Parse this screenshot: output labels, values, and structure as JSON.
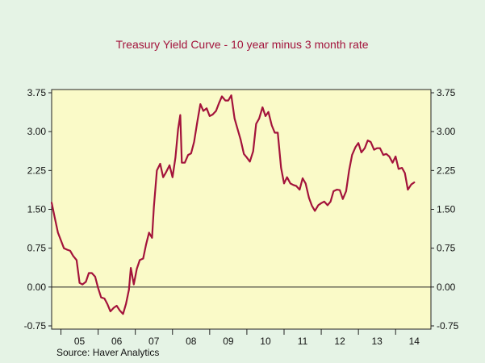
{
  "chart_data": {
    "type": "line",
    "title": "Treasury Yield Curve - 10 year minus 3 month rate",
    "source": "Source: Haver Analytics",
    "xlabel": "",
    "ylabel": "",
    "ylim": [
      -0.75,
      3.75
    ],
    "y_ticks": [
      "3.75",
      "3.00",
      "2.25",
      "1.50",
      "0.75",
      "0.00",
      "-0.75"
    ],
    "x_tick_labels": [
      "05",
      "06",
      "07",
      "08",
      "09",
      "10",
      "11",
      "12",
      "13",
      "14"
    ],
    "x_range_years": [
      2004.75,
      2014.95
    ],
    "zero_line": true,
    "grid": false,
    "plot_background": "#fafac8",
    "page_background": "#e5f3e5",
    "line_color": "#a3133b",
    "title_color": "#a3133b",
    "series": [
      {
        "values": [
          [
            2004.75,
            1.63
          ],
          [
            2004.83,
            1.35
          ],
          [
            2004.92,
            1.05
          ],
          [
            2005.0,
            0.9
          ],
          [
            2005.08,
            0.75
          ],
          [
            2005.17,
            0.72
          ],
          [
            2005.25,
            0.7
          ],
          [
            2005.33,
            0.6
          ],
          [
            2005.42,
            0.52
          ],
          [
            2005.5,
            0.08
          ],
          [
            2005.58,
            0.05
          ],
          [
            2005.67,
            0.1
          ],
          [
            2005.75,
            0.27
          ],
          [
            2005.83,
            0.27
          ],
          [
            2005.92,
            0.2
          ],
          [
            2006.0,
            -0.02
          ],
          [
            2006.08,
            -0.2
          ],
          [
            2006.17,
            -0.22
          ],
          [
            2006.25,
            -0.33
          ],
          [
            2006.33,
            -0.47
          ],
          [
            2006.42,
            -0.4
          ],
          [
            2006.5,
            -0.36
          ],
          [
            2006.58,
            -0.45
          ],
          [
            2006.67,
            -0.52
          ],
          [
            2006.75,
            -0.32
          ],
          [
            2006.83,
            -0.05
          ],
          [
            2006.88,
            0.37
          ],
          [
            2006.96,
            0.05
          ],
          [
            2007.04,
            0.35
          ],
          [
            2007.12,
            0.52
          ],
          [
            2007.21,
            0.55
          ],
          [
            2007.29,
            0.82
          ],
          [
            2007.37,
            1.05
          ],
          [
            2007.45,
            0.95
          ],
          [
            2007.5,
            1.55
          ],
          [
            2007.58,
            2.25
          ],
          [
            2007.67,
            2.38
          ],
          [
            2007.75,
            2.12
          ],
          [
            2007.83,
            2.22
          ],
          [
            2007.92,
            2.35
          ],
          [
            2008.0,
            2.12
          ],
          [
            2008.08,
            2.5
          ],
          [
            2008.15,
            3.05
          ],
          [
            2008.21,
            3.32
          ],
          [
            2008.25,
            2.4
          ],
          [
            2008.33,
            2.4
          ],
          [
            2008.42,
            2.55
          ],
          [
            2008.5,
            2.58
          ],
          [
            2008.58,
            2.8
          ],
          [
            2008.67,
            3.2
          ],
          [
            2008.75,
            3.53
          ],
          [
            2008.83,
            3.4
          ],
          [
            2008.92,
            3.45
          ],
          [
            2009.0,
            3.3
          ],
          [
            2009.08,
            3.33
          ],
          [
            2009.17,
            3.4
          ],
          [
            2009.25,
            3.55
          ],
          [
            2009.33,
            3.68
          ],
          [
            2009.42,
            3.6
          ],
          [
            2009.5,
            3.6
          ],
          [
            2009.58,
            3.7
          ],
          [
            2009.67,
            3.25
          ],
          [
            2009.75,
            3.05
          ],
          [
            2009.83,
            2.85
          ],
          [
            2009.92,
            2.57
          ],
          [
            2010.0,
            2.5
          ],
          [
            2010.08,
            2.42
          ],
          [
            2010.17,
            2.62
          ],
          [
            2010.25,
            3.15
          ],
          [
            2010.33,
            3.25
          ],
          [
            2010.42,
            3.47
          ],
          [
            2010.5,
            3.3
          ],
          [
            2010.58,
            3.38
          ],
          [
            2010.67,
            3.12
          ],
          [
            2010.75,
            2.98
          ],
          [
            2010.83,
            2.98
          ],
          [
            2010.92,
            2.3
          ],
          [
            2011.0,
            2.0
          ],
          [
            2011.08,
            2.12
          ],
          [
            2011.17,
            2.0
          ],
          [
            2011.25,
            1.97
          ],
          [
            2011.33,
            1.95
          ],
          [
            2011.42,
            1.88
          ],
          [
            2011.5,
            2.1
          ],
          [
            2011.58,
            2.0
          ],
          [
            2011.67,
            1.72
          ],
          [
            2011.75,
            1.57
          ],
          [
            2011.83,
            1.47
          ],
          [
            2011.92,
            1.58
          ],
          [
            2012.0,
            1.62
          ],
          [
            2012.08,
            1.65
          ],
          [
            2012.17,
            1.58
          ],
          [
            2012.25,
            1.65
          ],
          [
            2012.33,
            1.85
          ],
          [
            2012.42,
            1.88
          ],
          [
            2012.5,
            1.87
          ],
          [
            2012.58,
            1.7
          ],
          [
            2012.67,
            1.85
          ],
          [
            2012.75,
            2.25
          ],
          [
            2012.83,
            2.55
          ],
          [
            2012.92,
            2.7
          ],
          [
            2013.0,
            2.78
          ],
          [
            2013.08,
            2.6
          ],
          [
            2013.17,
            2.68
          ],
          [
            2013.25,
            2.83
          ],
          [
            2013.33,
            2.8
          ],
          [
            2013.42,
            2.65
          ],
          [
            2013.5,
            2.68
          ],
          [
            2013.58,
            2.68
          ],
          [
            2013.67,
            2.55
          ],
          [
            2013.75,
            2.57
          ],
          [
            2013.83,
            2.52
          ],
          [
            2013.92,
            2.4
          ],
          [
            2014.0,
            2.52
          ],
          [
            2014.08,
            2.28
          ],
          [
            2014.17,
            2.3
          ],
          [
            2014.25,
            2.2
          ],
          [
            2014.33,
            1.88
          ],
          [
            2014.42,
            1.98
          ],
          [
            2014.5,
            2.02
          ]
        ]
      }
    ]
  }
}
